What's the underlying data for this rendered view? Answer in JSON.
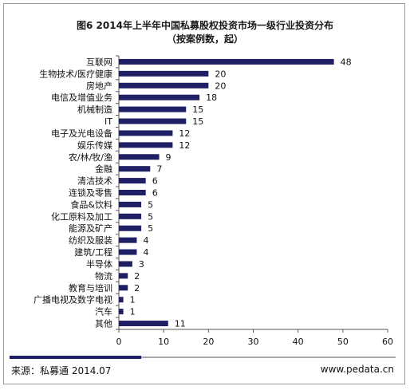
{
  "header": {
    "title": "图6 2014年上半年中国私募股权投资市场一级行业投资分布",
    "subtitle": "（按案例数，起）"
  },
  "footer": {
    "source": "来源：私募通  2014.07",
    "site": "www.pedata.cn"
  },
  "chart_data": {
    "type": "bar",
    "orientation": "horizontal",
    "title": "图6 2014年上半年中国私募股权投资市场一级行业投资分布",
    "subtitle": "（按案例数，起）",
    "categories": [
      "互联网",
      "生物技术/医疗健康",
      "房地产",
      "电信及增值业务",
      "机械制造",
      "IT",
      "电子及光电设备",
      "娱乐传媒",
      "农/林/牧/渔",
      "金融",
      "清洁技术",
      "连锁及零售",
      "食品&饮料",
      "化工原料及加工",
      "能源及矿产",
      "纺织及服装",
      "建筑/工程",
      "半导体",
      "物流",
      "教育与培训",
      "广播电视及数字电视",
      "汽车",
      "其他"
    ],
    "values": [
      48,
      20,
      20,
      18,
      15,
      15,
      12,
      12,
      9,
      7,
      6,
      6,
      5,
      5,
      5,
      4,
      4,
      3,
      2,
      2,
      1,
      1,
      11
    ],
    "xlim": [
      0,
      60
    ],
    "xticks": [
      0,
      10,
      20,
      30,
      40,
      50,
      60
    ],
    "bar_color": "#1f1f66",
    "grid": false,
    "legend": "none"
  }
}
